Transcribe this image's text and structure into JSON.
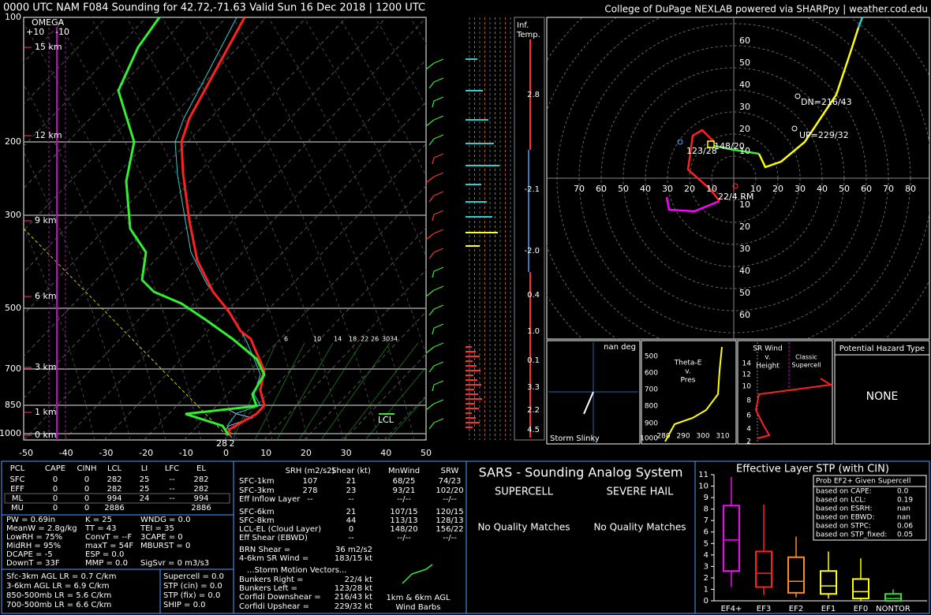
{
  "header": {
    "title": "0000 UTC NAM F084 Sounding for 42.72,-71.63 Valid  Sun 16 Dec 2018 | 1200 UTC",
    "credit": "College of DuPage NEXLAB powered via SHARPpy | weather.cod.edu"
  },
  "skewt": {
    "pressure_labels": [
      "100",
      "200",
      "300",
      "500",
      "700",
      "850",
      "1000"
    ],
    "temp_labels": [
      "-50",
      "-40",
      "-30",
      "-20",
      "-10",
      "0",
      "10",
      "20",
      "30",
      "40",
      "50"
    ],
    "height_labels": [
      "15 km",
      "12 km",
      "9 km",
      "6 km",
      "3 km",
      "1 km",
      "0 km"
    ],
    "omega": "OMEGA",
    "omega_ticks": [
      "+10",
      "-10"
    ],
    "mixing_ratio_labels": [
      "6",
      "10",
      "14",
      "18",
      "22",
      "26",
      "30",
      "34"
    ],
    "lcl": "LCL",
    "sfc_td": "28",
    "sfc_t": "2"
  },
  "inferred_temp": {
    "header": [
      "Inf.",
      "Temp."
    ],
    "values": [
      {
        "text": "2.8",
        "color": "#ff3030"
      },
      {
        "text": "-2.1",
        "color": "#4aa0ff"
      },
      {
        "text": "-2.0",
        "color": "#4aa0ff"
      },
      {
        "text": "0.4",
        "color": "#ff3030"
      },
      {
        "text": "1.0",
        "color": "#ff3030"
      },
      {
        "text": "0.1",
        "color": "#ff3030"
      },
      {
        "text": "3.3",
        "color": "#ff3030"
      },
      {
        "text": "2.2",
        "color": "#ff3030"
      },
      {
        "text": "4.5",
        "color": "#ff3030"
      }
    ]
  },
  "hodograph": {
    "left_labels": [
      "70",
      "60",
      "50",
      "40",
      "30",
      "20",
      "10"
    ],
    "right_labels": [
      "10",
      "20",
      "30",
      "40",
      "50",
      "60",
      "70",
      "80"
    ],
    "top_labels": [
      "60",
      "50",
      "40",
      "30",
      "20",
      "10"
    ],
    "bottom_labels": [
      "10",
      "20",
      "30",
      "40",
      "50",
      "60"
    ],
    "points": [
      {
        "text": "DN=216/43",
        "color": "#ffffff"
      },
      {
        "text": "UP=229/32",
        "color": "#ffffff"
      },
      {
        "text": "148/20",
        "color": "#ffffff"
      },
      {
        "text": "123/28",
        "color": "#4aa0ff"
      },
      {
        "text": "22/4 RM",
        "color": "#ff3030"
      }
    ]
  },
  "panels": {
    "slinky_deg": "nan deg",
    "slinky": "Storm Slinky",
    "theta_e": [
      "Theta-E",
      "v.",
      "Pres"
    ],
    "theta_ticks": [
      "500",
      "600",
      "700",
      "800",
      "900",
      "1000"
    ],
    "theta_x": [
      "280",
      "290",
      "300",
      "310"
    ],
    "sr_wind": [
      "SR Wind",
      "v.",
      "Height"
    ],
    "sr_ticks": [
      "14",
      "12",
      "10",
      "8",
      "6",
      "4",
      "2"
    ],
    "supercell": [
      "Classic",
      "Supercell"
    ],
    "hazard_title": "Potential Hazard Type",
    "hazard": "NONE"
  },
  "parcels": {
    "headers": [
      "PCL",
      "CAPE",
      "CINH",
      "LCL",
      "LI",
      "LFC",
      "EL"
    ],
    "rows": [
      [
        "SFC",
        "0",
        "0",
        "282",
        "25",
        "--",
        "282"
      ],
      [
        "EFF",
        "0",
        "0",
        "282",
        "25",
        "--",
        "282"
      ],
      [
        "ML",
        "0",
        "0",
        "994",
        "24",
        "--",
        "994"
      ],
      [
        "MU",
        "0",
        "0",
        "2886",
        null,
        null,
        "2886"
      ]
    ]
  },
  "indices": {
    "col1": [
      "PW = 0.69in",
      "MeanW = 2.8g/kg",
      "LowRH = 75%",
      "MidRH = 95%",
      "DCAPE = -5",
      "DownT = 33F"
    ],
    "col2": [
      "K = 25",
      "TT = 43",
      "ConvT = --F",
      "maxT = 54F",
      "ESP = 0.0",
      "MMP = 0.0"
    ],
    "col3": [
      "WNDG = 0.0",
      "TEI = 35",
      "3CAPE = 0",
      "MBURST = 0",
      null,
      "SigSvr = 0 m3/s3"
    ],
    "lapse": [
      {
        "text": "Sfc-3km AGL LR = 0.7 C/km",
        "color": "#33dd33"
      },
      {
        "text": "3-6km AGL LR = 6.9 C/km",
        "color": "#ffffff"
      },
      {
        "text": "850-500mb LR = 5.6 C/km",
        "color": "#c8e03c"
      },
      {
        "text": "700-500mb LR = 6.6 C/km",
        "color": "#ffffff"
      }
    ],
    "composite": [
      "Supercell = 0.0",
      "STP (cin) = 0.0",
      "STP (fix) = 0.0",
      "SHIP = 0.0"
    ]
  },
  "kinematics": {
    "headers": [
      "SRH (m2/s2)",
      "Shear (kt)",
      "MnWind",
      "SRW"
    ],
    "rows": [
      {
        "cells": [
          "SFC-1km",
          "107",
          "21",
          "68/25",
          "74/23"
        ],
        "color": "#ffffff"
      },
      {
        "cells": [
          "SFC-3km",
          "278",
          "23",
          "93/21",
          "102/20"
        ],
        "color": "#ffffff"
      },
      {
        "cells": [
          "Eff Inflow Layer",
          "--",
          "--",
          "--/--",
          "--/--"
        ],
        "color": "#ffffff"
      },
      {
        "cells": [
          "SFC-6km",
          null,
          "21",
          "107/15",
          "120/15"
        ],
        "color": "#ffffff"
      },
      {
        "cells": [
          "SFC-8km",
          null,
          "44",
          "113/13",
          "128/13"
        ],
        "color": "#ffffff"
      },
      {
        "cells": [
          "LCL-EL (Cloud Layer)",
          null,
          "0",
          "148/20",
          "156/22"
        ],
        "color": "#ff8c1a"
      },
      {
        "cells": [
          "Eff Shear (EBWD)",
          null,
          "--",
          "--/--",
          "--/--"
        ],
        "color": "#ffffff"
      }
    ],
    "extras": [
      {
        "label": "BRN Shear =",
        "value": "36 m2/s2",
        "color": "#ffffff"
      },
      {
        "label": "4-6km SR Wind =",
        "value": "183/15 kt",
        "color": "#ffffff"
      },
      {
        "label": "...Storm Motion Vectors...",
        "value": null,
        "color": "#ffffff"
      },
      {
        "label": "Bunkers Right =",
        "value": "22/4 kt",
        "color": "#ff3030"
      },
      {
        "label": "Bunkers Left =",
        "value": "123/28 kt",
        "color": "#4aa0ff"
      },
      {
        "label": "Corfidi Downshear =",
        "value": "216/43 kt",
        "color": "#ffffff"
      },
      {
        "label": "Corfidi Upshear =",
        "value": "229/32 kt",
        "color": "#ffffff"
      }
    ],
    "barbs_label": [
      "1km & 6km AGL",
      "Wind Barbs"
    ]
  },
  "sars": {
    "title": "SARS - Sounding Analog System",
    "supercell": "SUPERCELL",
    "hail": "SEVERE HAIL",
    "supercell_result": "No Quality Matches",
    "hail_result": "No Quality Matches"
  },
  "stp_chart": {
    "type": "box",
    "title": "Effective Layer STP (with CIN)",
    "categories": [
      "EF4+",
      "EF3",
      "EF2",
      "EF1",
      "EF0",
      "NONTOR"
    ],
    "colors": [
      "#ff00ff",
      "#ff2020",
      "#ff8c1a",
      "#ffff00",
      "#ffff00",
      "#33dd33"
    ],
    "whisker_low": [
      1.2,
      0.5,
      0.3,
      0.2,
      0,
      0
    ],
    "q1": [
      2.6,
      1.2,
      0.7,
      0.6,
      0.2,
      0
    ],
    "median": [
      5.3,
      2.4,
      1.7,
      1.3,
      0.8,
      0.2
    ],
    "q3": [
      8.3,
      4.3,
      3.8,
      2.6,
      1.9,
      0.6
    ],
    "whisker_high": [
      10.8,
      8.4,
      5.6,
      4.3,
      3.7,
      1.0
    ],
    "ylim": [
      0,
      11
    ],
    "yticks": [
      0,
      1,
      2,
      3,
      4,
      5,
      6,
      7,
      8,
      9,
      10,
      11
    ],
    "prob_title": "Prob EF2+ Given Supercell",
    "prob_rows": [
      {
        "label": "based on CAPE:",
        "value": "0.0",
        "color": "#ffffff"
      },
      {
        "label": "based on LCL:",
        "value": "0.19",
        "color": "#ff3030"
      },
      {
        "label": "based on ESRH:",
        "value": "nan",
        "color": "#ffffff"
      },
      {
        "label": "based on EBWD:",
        "value": "nan",
        "color": "#ffffff"
      },
      {
        "label": "based on STPC:",
        "value": "0.06",
        "color": "#ffffff"
      },
      {
        "label": "based on STP_fixed:",
        "value": "0.05",
        "color": "#ffffff"
      }
    ]
  }
}
